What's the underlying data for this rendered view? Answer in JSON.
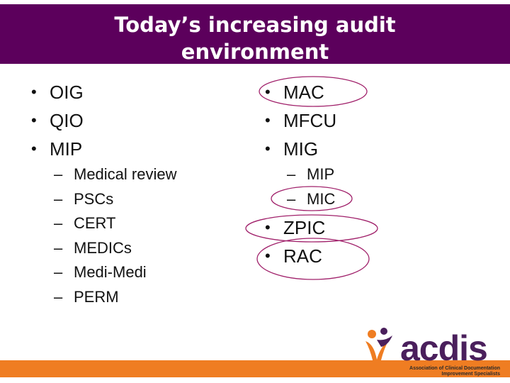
{
  "slide": {
    "title_line1": "Today’s increasing audit",
    "title_line2": "environment"
  },
  "left": {
    "bullets": [
      "OIG",
      "QIO",
      "MIP"
    ],
    "sub_items": [
      "Medical review",
      "PSCs",
      "CERT",
      "MEDICs",
      "Medi-Medi",
      "PERM"
    ]
  },
  "right": {
    "bullets": [
      "MAC",
      "MFCU",
      "MIG"
    ],
    "sub_items": [
      "MIP",
      "MIC"
    ],
    "bullets2": [
      "ZPIC",
      "RAC"
    ]
  },
  "logo": {
    "wordmark": "acdis",
    "tagline_line1": "Association of Clinical Documentation",
    "tagline_line2": "Improvement Specialists"
  },
  "colors": {
    "title_bar": "#5c005c",
    "bottom_bar": "#ef7d22",
    "oval_stroke": "#a0206a",
    "logo_purple": "#4a1f5c",
    "logo_orange": "#ef7d22"
  }
}
